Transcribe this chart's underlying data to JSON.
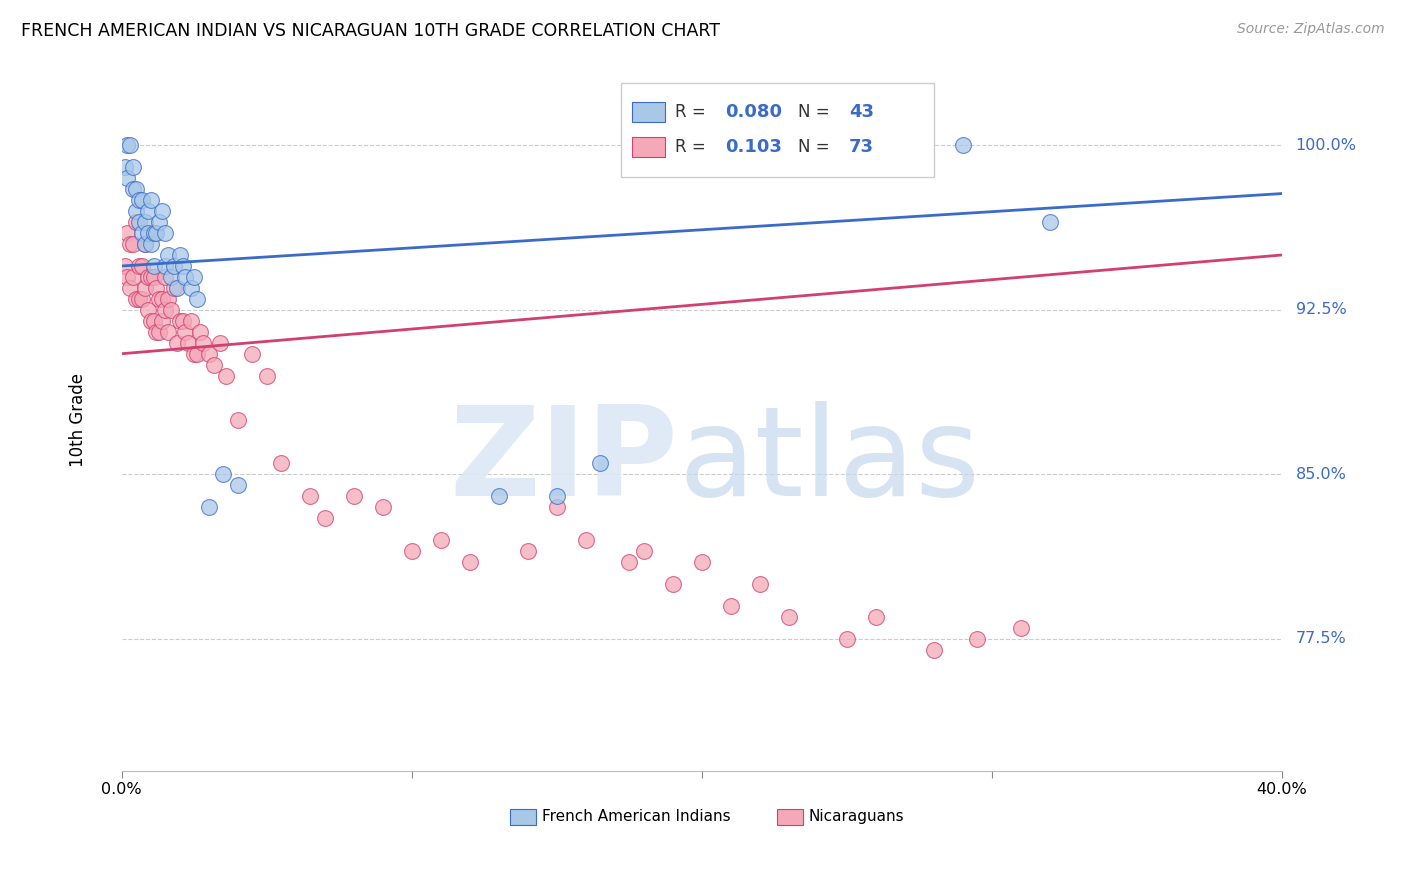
{
  "title": "FRENCH AMERICAN INDIAN VS NICARAGUAN 10TH GRADE CORRELATION CHART",
  "source": "Source: ZipAtlas.com",
  "ylabel": "10th Grade",
  "ytick_labels": [
    "77.5%",
    "85.0%",
    "92.5%",
    "100.0%"
  ],
  "ytick_values": [
    0.775,
    0.85,
    0.925,
    1.0
  ],
  "xlim": [
    0.0,
    0.4
  ],
  "ylim": [
    0.715,
    1.035
  ],
  "blue_R": 0.08,
  "blue_N": 43,
  "pink_R": 0.103,
  "pink_N": 73,
  "blue_color": "#a8c8e8",
  "pink_color": "#f4a8b8",
  "blue_line_color": "#3a6bc9",
  "pink_line_color": "#d04070",
  "legend_R_color": "#3a6bc9",
  "blue_line_y0": 0.945,
  "blue_line_y1": 0.978,
  "pink_line_y0": 0.905,
  "pink_line_y1": 0.95,
  "blue_points_x": [
    0.001,
    0.002,
    0.002,
    0.003,
    0.004,
    0.004,
    0.005,
    0.005,
    0.006,
    0.006,
    0.007,
    0.007,
    0.008,
    0.008,
    0.009,
    0.009,
    0.01,
    0.01,
    0.011,
    0.011,
    0.012,
    0.013,
    0.014,
    0.015,
    0.015,
    0.016,
    0.017,
    0.018,
    0.019,
    0.02,
    0.021,
    0.022,
    0.024,
    0.025,
    0.026,
    0.03,
    0.035,
    0.04,
    0.13,
    0.15,
    0.165,
    0.29,
    0.32
  ],
  "blue_points_y": [
    0.99,
    1.0,
    0.985,
    1.0,
    0.99,
    0.98,
    0.98,
    0.97,
    0.975,
    0.965,
    0.975,
    0.96,
    0.965,
    0.955,
    0.97,
    0.96,
    0.975,
    0.955,
    0.96,
    0.945,
    0.96,
    0.965,
    0.97,
    0.96,
    0.945,
    0.95,
    0.94,
    0.945,
    0.935,
    0.95,
    0.945,
    0.94,
    0.935,
    0.94,
    0.93,
    0.835,
    0.85,
    0.845,
    0.84,
    0.84,
    0.855,
    1.0,
    0.965
  ],
  "pink_points_x": [
    0.001,
    0.002,
    0.002,
    0.003,
    0.003,
    0.004,
    0.004,
    0.005,
    0.005,
    0.006,
    0.006,
    0.007,
    0.007,
    0.008,
    0.008,
    0.009,
    0.009,
    0.01,
    0.01,
    0.011,
    0.011,
    0.012,
    0.012,
    0.013,
    0.013,
    0.014,
    0.014,
    0.015,
    0.015,
    0.016,
    0.016,
    0.017,
    0.018,
    0.019,
    0.02,
    0.021,
    0.022,
    0.023,
    0.024,
    0.025,
    0.026,
    0.027,
    0.028,
    0.03,
    0.032,
    0.034,
    0.036,
    0.04,
    0.045,
    0.05,
    0.055,
    0.065,
    0.07,
    0.08,
    0.09,
    0.1,
    0.11,
    0.12,
    0.14,
    0.15,
    0.16,
    0.175,
    0.18,
    0.19,
    0.2,
    0.21,
    0.22,
    0.23,
    0.25,
    0.26,
    0.28,
    0.295,
    0.31
  ],
  "pink_points_y": [
    0.945,
    0.96,
    0.94,
    0.955,
    0.935,
    0.955,
    0.94,
    0.965,
    0.93,
    0.945,
    0.93,
    0.945,
    0.93,
    0.955,
    0.935,
    0.94,
    0.925,
    0.94,
    0.92,
    0.94,
    0.92,
    0.935,
    0.915,
    0.93,
    0.915,
    0.93,
    0.92,
    0.94,
    0.925,
    0.93,
    0.915,
    0.925,
    0.935,
    0.91,
    0.92,
    0.92,
    0.915,
    0.91,
    0.92,
    0.905,
    0.905,
    0.915,
    0.91,
    0.905,
    0.9,
    0.91,
    0.895,
    0.875,
    0.905,
    0.895,
    0.855,
    0.84,
    0.83,
    0.84,
    0.835,
    0.815,
    0.82,
    0.81,
    0.815,
    0.835,
    0.82,
    0.81,
    0.815,
    0.8,
    0.81,
    0.79,
    0.8,
    0.785,
    0.775,
    0.785,
    0.77,
    0.775,
    0.78
  ]
}
